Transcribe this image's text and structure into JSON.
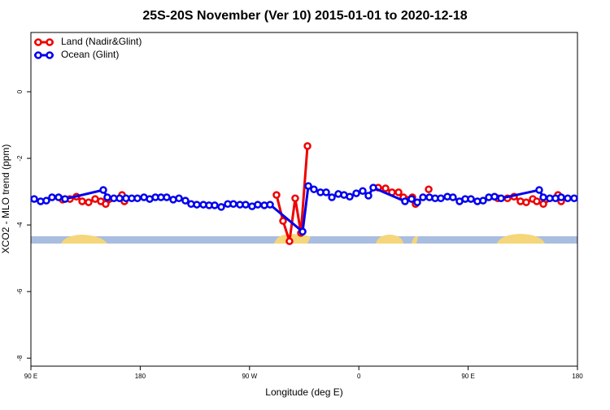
{
  "chart_data": {
    "type": "line",
    "title": "25S-20S November (Ver 10)   2015-01-01 to 2020-12-18",
    "xlabel": "Longitude (deg E)",
    "ylabel": "XCO2 - MLO trend (ppm)",
    "xlim": [
      90,
      540
    ],
    "ylim": [
      -8.24,
      1.78
    ],
    "xticks": [
      {
        "value": 90,
        "label": "90 E"
      },
      180,
      {
        "value": 270,
        "label": "90 W"
      },
      {
        "value": 360,
        "label": "0"
      },
      {
        "value": 450,
        "label": "90 E"
      },
      {
        "value": 540,
        "label": "180"
      }
    ],
    "yticks": [
      0,
      -2,
      -4,
      -6,
      -8
    ],
    "legend": "top-left",
    "series": [
      {
        "name": "Land (Nadir&Glint)",
        "color": "#ee0000",
        "x": [
          116.1,
          122.1,
          127.5,
          132.2,
          137.5,
          142.9,
          147.6,
          151.6,
          165.0,
          167.0,
          null,
          292.2,
          297.6,
          302.9,
          307.6,
          312.3,
          317.7,
          null,
          375.9,
          382.0,
          387.3,
          392.7,
          396.7,
          404.1,
          406.7,
          null,
          417.5,
          null,
          474.4,
          482.4,
          487.8,
          493.1,
          497.8,
          503.2,
          506.5,
          511.9,
          524.0,
          526.6
        ],
        "values": [
          -3.24,
          -3.22,
          -3.15,
          -3.29,
          -3.32,
          -3.22,
          -3.29,
          -3.37,
          -3.1,
          -3.29,
          null,
          -3.1,
          -3.88,
          -4.49,
          -3.2,
          -4.24,
          -1.63,
          null,
          -2.88,
          -2.9,
          -3.02,
          -3.02,
          -3.17,
          -3.17,
          -3.37,
          null,
          -2.93,
          null,
          -3.2,
          -3.2,
          -3.15,
          -3.29,
          -3.32,
          -3.22,
          -3.29,
          -3.37,
          -3.1,
          -3.29
        ]
      },
      {
        "name": "Ocean (Glint)",
        "color": "#0000ee",
        "x": [
          92.7,
          98.0,
          102.7,
          107.4,
          112.8,
          118.1,
          149.6,
          152.9,
          158.3,
          163.0,
          168.3,
          173.0,
          177.7,
          183.1,
          187.8,
          192.5,
          197.1,
          201.8,
          207.2,
          211.9,
          217.2,
          221.9,
          226.6,
          232.0,
          236.7,
          241.3,
          246.7,
          252.1,
          256.7,
          262.1,
          266.8,
          272.1,
          276.8,
          282.2,
          286.9,
          313.7,
          318.4,
          323.0,
          328.4,
          333.1,
          337.8,
          343.1,
          347.8,
          352.5,
          357.9,
          363.2,
          367.9,
          371.9,
          398.0,
          403.4,
          408.1,
          412.8,
          418.1,
          422.8,
          427.5,
          432.9,
          437.5,
          442.9,
          447.6,
          452.3,
          457.6,
          462.3,
          467.0,
          471.7,
          477.1,
          508.5,
          511.9,
          517.2,
          521.9,
          526.6,
          532.0,
          537.3
        ],
        "values": [
          -3.22,
          -3.29,
          -3.27,
          -3.17,
          -3.17,
          -3.22,
          -2.95,
          -3.17,
          -3.2,
          -3.2,
          -3.2,
          -3.2,
          -3.2,
          -3.17,
          -3.22,
          -3.17,
          -3.17,
          -3.17,
          -3.24,
          -3.2,
          -3.27,
          -3.37,
          -3.39,
          -3.39,
          -3.41,
          -3.41,
          -3.46,
          -3.37,
          -3.37,
          -3.39,
          -3.39,
          -3.44,
          -3.39,
          -3.41,
          -3.39,
          -4.2,
          -2.83,
          -2.93,
          -3.02,
          -3.02,
          -3.17,
          -3.07,
          -3.1,
          -3.15,
          -3.05,
          -2.98,
          -3.12,
          -2.88,
          -3.29,
          -3.22,
          -3.32,
          -3.17,
          -3.17,
          -3.2,
          -3.2,
          -3.15,
          -3.17,
          -3.29,
          -3.22,
          -3.22,
          -3.29,
          -3.27,
          -3.17,
          -3.15,
          -3.2,
          -2.95,
          -3.17,
          -3.2,
          -3.2,
          -3.17,
          -3.2,
          -3.2
        ]
      }
    ]
  }
}
